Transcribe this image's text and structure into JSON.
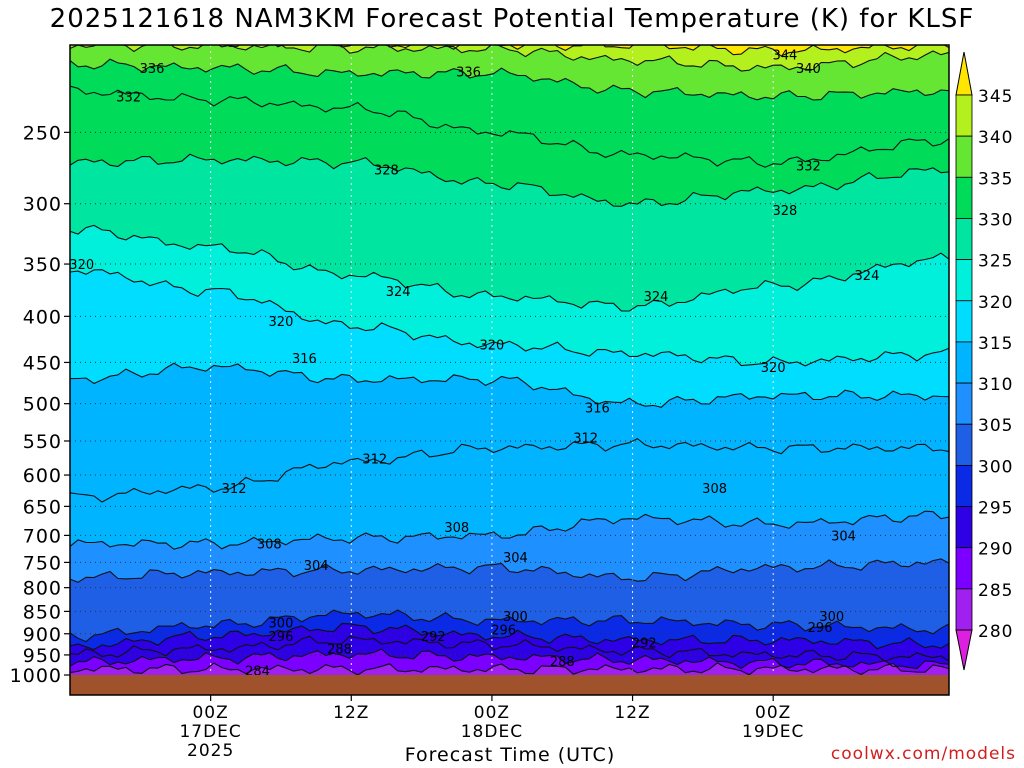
{
  "title": "2025121618 NAM3KM Forecast Potential Temperature (K) for KLSF",
  "credit": "coolwx.com/models",
  "chart_data": {
    "type": "contour",
    "title": "2025121618 NAM3KM Forecast Potential Temperature (K) for KLSF",
    "xlabel": "Forecast Time (UTC)",
    "ylabel": "",
    "y_axis": {
      "kind": "log-pressure",
      "direction": "inverted",
      "ylim": [
        1000,
        200
      ],
      "ticks": [
        250,
        300,
        350,
        400,
        450,
        500,
        550,
        600,
        650,
        700,
        750,
        800,
        850,
        900,
        950,
        1000
      ],
      "gridlines": "dotted"
    },
    "x_axis": {
      "xlim_hours": [
        -6,
        69
      ],
      "ticks": [
        {
          "hour": 6,
          "lines": [
            "00Z",
            "17DEC",
            "2025"
          ]
        },
        {
          "hour": 18,
          "lines": [
            "12Z"
          ]
        },
        {
          "hour": 30,
          "lines": [
            "00Z",
            "18DEC"
          ]
        },
        {
          "hour": 42,
          "lines": [
            "12Z"
          ]
        },
        {
          "hour": 54,
          "lines": [
            "00Z",
            "19DEC"
          ]
        }
      ]
    },
    "colorbar": {
      "levels": [
        280,
        285,
        290,
        295,
        300,
        305,
        310,
        315,
        320,
        325,
        330,
        335,
        340,
        345
      ],
      "colors": [
        "#dd20e0",
        "#a020f0",
        "#7b00ff",
        "#2d00e6",
        "#0a2ae6",
        "#1e5fe6",
        "#1e90ff",
        "#00b4ff",
        "#00ddff",
        "#00f0dc",
        "#00e6a0",
        "#00dc5a",
        "#64e632",
        "#b4f01e",
        "#ffe600"
      ]
    },
    "ground_color": "#a0522d",
    "isentropes": [
      {
        "value": 284,
        "profile": [
          [
            -6,
            985
          ],
          [
            69,
            985
          ]
        ]
      },
      {
        "value": 288,
        "profile": [
          [
            -6,
            968
          ],
          [
            6,
            958
          ],
          [
            18,
            948
          ],
          [
            30,
            955
          ],
          [
            42,
            962
          ],
          [
            54,
            970
          ],
          [
            69,
            975
          ]
        ]
      },
      {
        "value": 292,
        "profile": [
          [
            -6,
            948
          ],
          [
            6,
            935
          ],
          [
            18,
            915
          ],
          [
            30,
            925
          ],
          [
            42,
            940
          ],
          [
            54,
            950
          ],
          [
            69,
            955
          ]
        ]
      },
      {
        "value": 296,
        "profile": [
          [
            -6,
            930
          ],
          [
            6,
            905
          ],
          [
            18,
            885
          ],
          [
            30,
            905
          ],
          [
            42,
            915
          ],
          [
            54,
            915
          ],
          [
            69,
            925
          ]
        ]
      },
      {
        "value": 300,
        "profile": [
          [
            -6,
            905
          ],
          [
            6,
            880
          ],
          [
            18,
            855
          ],
          [
            30,
            870
          ],
          [
            42,
            870
          ],
          [
            54,
            880
          ],
          [
            69,
            890
          ]
        ]
      },
      {
        "value": 304,
        "profile": [
          [
            -6,
            780
          ],
          [
            6,
            770
          ],
          [
            18,
            765
          ],
          [
            30,
            760
          ],
          [
            42,
            780
          ],
          [
            54,
            760
          ],
          [
            69,
            750
          ]
        ]
      },
      {
        "value": 308,
        "profile": [
          [
            -6,
            715
          ],
          [
            6,
            715
          ],
          [
            18,
            705
          ],
          [
            30,
            700
          ],
          [
            42,
            670
          ],
          [
            54,
            680
          ],
          [
            69,
            665
          ]
        ]
      },
      {
        "value": 312,
        "profile": [
          [
            -6,
            635
          ],
          [
            6,
            620
          ],
          [
            18,
            580
          ],
          [
            30,
            560
          ],
          [
            42,
            555
          ],
          [
            54,
            560
          ],
          [
            69,
            560
          ]
        ]
      },
      {
        "value": 316,
        "profile": [
          [
            -6,
            470
          ],
          [
            6,
            455
          ],
          [
            18,
            470
          ],
          [
            30,
            470
          ],
          [
            42,
            500
          ],
          [
            54,
            490
          ],
          [
            69,
            490
          ]
        ]
      },
      {
        "value": 320,
        "profile": [
          [
            -6,
            355
          ],
          [
            6,
            375
          ],
          [
            18,
            410
          ],
          [
            30,
            430
          ],
          [
            42,
            440
          ],
          [
            54,
            450
          ],
          [
            69,
            440
          ]
        ]
      },
      {
        "value": 324,
        "profile": [
          [
            -6,
            320
          ],
          [
            6,
            335
          ],
          [
            18,
            360
          ],
          [
            30,
            380
          ],
          [
            42,
            390
          ],
          [
            54,
            370
          ],
          [
            69,
            345
          ]
        ]
      },
      {
        "value": 328,
        "profile": [
          [
            -6,
            270
          ],
          [
            6,
            268
          ],
          [
            18,
            270
          ],
          [
            30,
            285
          ],
          [
            42,
            300
          ],
          [
            54,
            290
          ],
          [
            69,
            275
          ]
        ]
      },
      {
        "value": 332,
        "profile": [
          [
            -6,
            225
          ],
          [
            6,
            230
          ],
          [
            18,
            235
          ],
          [
            30,
            250
          ],
          [
            42,
            265
          ],
          [
            54,
            270
          ],
          [
            69,
            255
          ]
        ]
      },
      {
        "value": 336,
        "profile": [
          [
            -6,
            210
          ],
          [
            6,
            212
          ],
          [
            18,
            215
          ],
          [
            30,
            215
          ],
          [
            42,
            225
          ],
          [
            54,
            228
          ],
          [
            69,
            225
          ]
        ]
      },
      {
        "value": 340,
        "profile": [
          [
            -6,
            200
          ],
          [
            30,
            202
          ],
          [
            42,
            208
          ],
          [
            54,
            212
          ],
          [
            69,
            205
          ]
        ]
      },
      {
        "value": 344,
        "profile": [
          [
            -6,
            198
          ],
          [
            42,
            200
          ],
          [
            54,
            203
          ],
          [
            69,
            200
          ]
        ]
      }
    ],
    "contour_labels": [
      {
        "text": "336",
        "hour": 1,
        "p": 212
      },
      {
        "text": "332",
        "hour": -1,
        "p": 228
      },
      {
        "text": "336",
        "hour": 28,
        "p": 214
      },
      {
        "text": "344",
        "hour": 55,
        "p": 205
      },
      {
        "text": "340",
        "hour": 57,
        "p": 212
      },
      {
        "text": "328",
        "hour": 21,
        "p": 275
      },
      {
        "text": "332",
        "hour": 57,
        "p": 272
      },
      {
        "text": "328",
        "hour": 55,
        "p": 305
      },
      {
        "text": "320",
        "hour": -5,
        "p": 350
      },
      {
        "text": "324",
        "hour": 22,
        "p": 375
      },
      {
        "text": "324",
        "hour": 44,
        "p": 380
      },
      {
        "text": "324",
        "hour": 62,
        "p": 360
      },
      {
        "text": "320",
        "hour": 12,
        "p": 405
      },
      {
        "text": "320",
        "hour": 30,
        "p": 430
      },
      {
        "text": "316",
        "hour": 14,
        "p": 445
      },
      {
        "text": "320",
        "hour": 54,
        "p": 455
      },
      {
        "text": "316",
        "hour": 39,
        "p": 505
      },
      {
        "text": "312",
        "hour": 20,
        "p": 575
      },
      {
        "text": "312",
        "hour": 38,
        "p": 545
      },
      {
        "text": "312",
        "hour": 8,
        "p": 620
      },
      {
        "text": "308",
        "hour": 49,
        "p": 620
      },
      {
        "text": "308",
        "hour": 27,
        "p": 685
      },
      {
        "text": "308",
        "hour": 11,
        "p": 715
      },
      {
        "text": "304",
        "hour": 60,
        "p": 700
      },
      {
        "text": "304",
        "hour": 15,
        "p": 755
      },
      {
        "text": "304",
        "hour": 32,
        "p": 740
      },
      {
        "text": "300",
        "hour": 12,
        "p": 875
      },
      {
        "text": "300",
        "hour": 32,
        "p": 860
      },
      {
        "text": "300",
        "hour": 59,
        "p": 860
      },
      {
        "text": "296",
        "hour": 12,
        "p": 905
      },
      {
        "text": "296",
        "hour": 31,
        "p": 890
      },
      {
        "text": "296",
        "hour": 58,
        "p": 885
      },
      {
        "text": "292",
        "hour": 25,
        "p": 905
      },
      {
        "text": "292",
        "hour": 43,
        "p": 920
      },
      {
        "text": "288",
        "hour": 17,
        "p": 935
      },
      {
        "text": "288",
        "hour": 36,
        "p": 965
      },
      {
        "text": "284",
        "hour": 10,
        "p": 988
      }
    ]
  }
}
